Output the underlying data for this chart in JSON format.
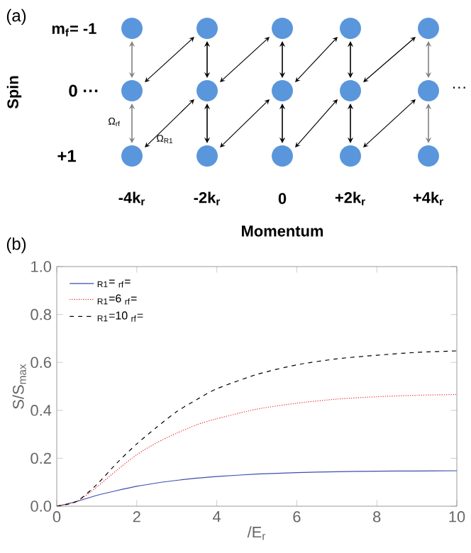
{
  "chart_data": {
    "type": "line",
    "xlabel": "/E$_{r}$",
    "ylabel": "S/S$_{max}$",
    "x": [
      0,
      0.5,
      1,
      1.5,
      2,
      2.5,
      3,
      3.5,
      4,
      5,
      6,
      7,
      8,
      9,
      10
    ],
    "series": [
      {
        "name": "$_{R1}$= $_{rf}$=",
        "color": "#3a4fb0",
        "line_style": "solid",
        "values": [
          0,
          0.02,
          0.045,
          0.065,
          0.083,
          0.097,
          0.108,
          0.117,
          0.124,
          0.134,
          0.14,
          0.144,
          0.146,
          0.147,
          0.148
        ]
      },
      {
        "name": "$_{R1}$=6 $_{rf}$=",
        "color": "#e8262d",
        "line_style": "dotted",
        "values": [
          0,
          0.02,
          0.08,
          0.15,
          0.215,
          0.265,
          0.305,
          0.34,
          0.365,
          0.405,
          0.43,
          0.447,
          0.457,
          0.463,
          0.466
        ]
      },
      {
        "name": "$_{R1}$=10 $_{rf}$=",
        "color": "#000000",
        "line_style": "dashed",
        "values": [
          0,
          0.02,
          0.09,
          0.18,
          0.26,
          0.33,
          0.395,
          0.445,
          0.49,
          0.55,
          0.59,
          0.615,
          0.63,
          0.642,
          0.648
        ]
      }
    ],
    "xlim": [
      0,
      10
    ],
    "ylim": [
      0,
      1
    ],
    "xticks": [
      0,
      2,
      4,
      6,
      8,
      10
    ],
    "yticks": [
      {
        "value": 0,
        "label": "0.0"
      },
      {
        "value": 0.2,
        "label": "0.2"
      },
      {
        "value": 0.4,
        "label": "0.4"
      },
      {
        "value": 0.6,
        "label": "0.6"
      },
      {
        "value": 0.8,
        "label": "0.8"
      },
      {
        "value": 1,
        "label": "1.0"
      }
    ],
    "legend": "top left",
    "grid": false,
    "annotations": [
      "(a)",
      "m$_{f}$= -1",
      "0 ···",
      "+1",
      "···",
      "Spin",
      "Ω$_{rf}$",
      "Ω$_{R1}$",
      "-4k$_{r}$",
      "-2k$_{r}$",
      "0",
      "+2k$_{r}$",
      "+4k$_{r}$",
      "Momentum",
      "(b)"
    ]
  }
}
